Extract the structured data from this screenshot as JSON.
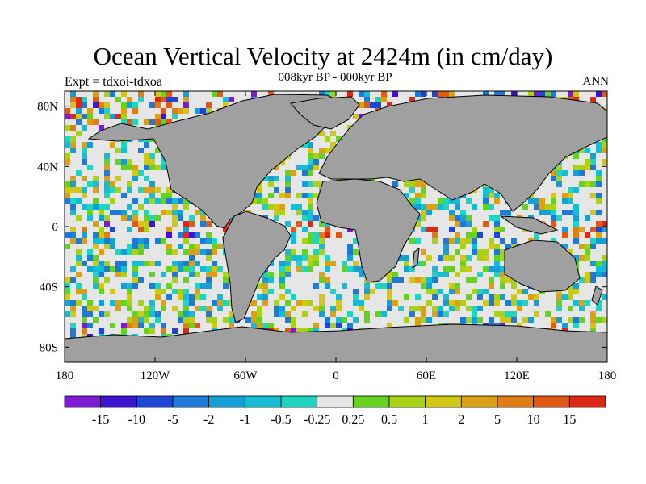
{
  "title": "Ocean Vertical Velocity at 2424m (in cm/day)",
  "subtitle": "008kyr BP - 000kyr BP",
  "left_label": "Expt = tdxoi-tdxoa",
  "right_label": "ANN",
  "map": {
    "projection": "cylindrical equidistant",
    "lon_range": [
      -180,
      180
    ],
    "lat_range": [
      -90,
      90
    ],
    "land_color": "#a0a0a0",
    "lat_ticks": [
      {
        "label": "80N",
        "lat": 80
      },
      {
        "label": "40N",
        "lat": 40
      },
      {
        "label": "0",
        "lat": 0
      },
      {
        "label": "40S",
        "lat": -40
      },
      {
        "label": "80S",
        "lat": -80
      }
    ],
    "lon_ticks": [
      {
        "label": "180",
        "lon": -180
      },
      {
        "label": "120W",
        "lon": -120
      },
      {
        "label": "60W",
        "lon": -60
      },
      {
        "label": "0",
        "lon": 0
      },
      {
        "label": "60E",
        "lon": 60
      },
      {
        "label": "120E",
        "lon": 120
      },
      {
        "label": "180",
        "lon": 180
      }
    ]
  },
  "colorbar": {
    "colors": [
      "#7d1ad6",
      "#3c14d2",
      "#1e46d2",
      "#1e7ad6",
      "#14a0d6",
      "#14bcd6",
      "#1ed6c0",
      "#e6e6e6",
      "#64d21e",
      "#aad214",
      "#d2c814",
      "#dca014",
      "#e07c14",
      "#e05a14",
      "#dc2814"
    ],
    "labels": [
      "-15",
      "-10",
      "-5",
      "-2",
      "-1",
      "-0.5",
      "-0.25",
      "0.25",
      "0.5",
      "1",
      "2",
      "5",
      "10",
      "15"
    ]
  }
}
